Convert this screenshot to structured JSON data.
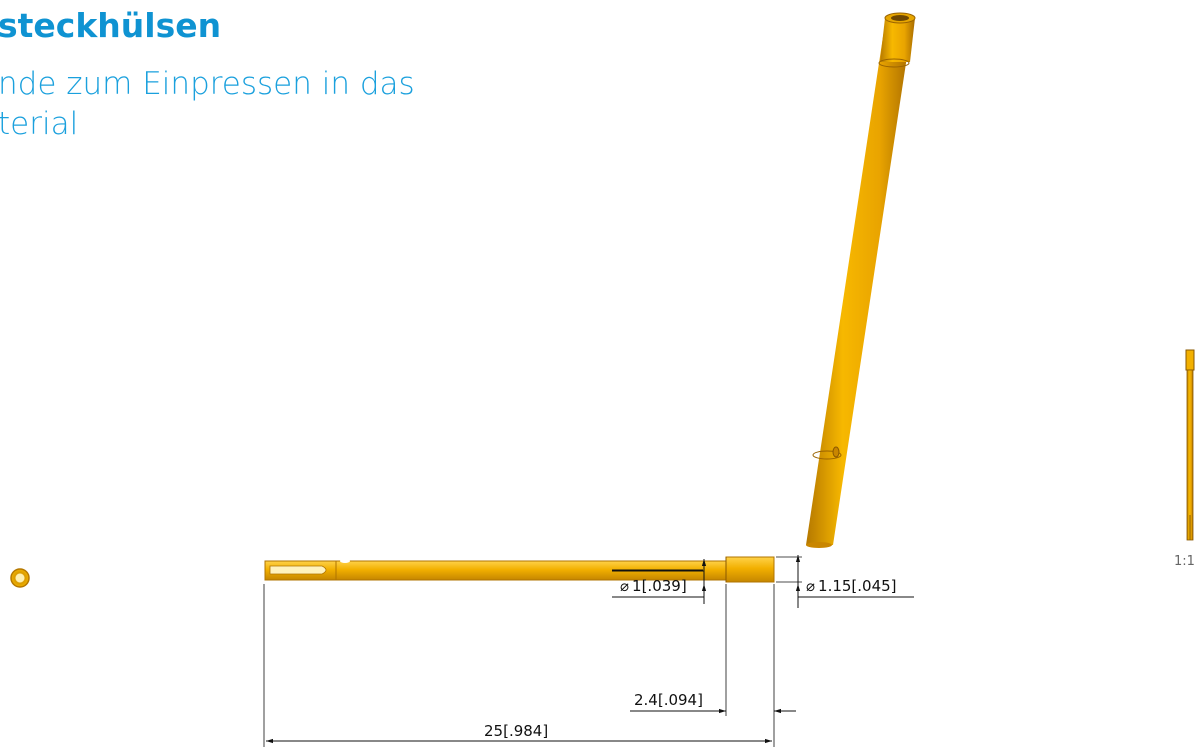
{
  "title": "steckhülsen",
  "subtitle": [
    "nde zum Einpressen in das",
    "terial"
  ],
  "dimensions": {
    "diameter_small": "1[.039]",
    "diameter_large": "1.15[.045]",
    "length_head": "2.4[.094]",
    "length_total": "25[.984]",
    "diameter_symbol": "⌀"
  },
  "scale_label": "1:1",
  "colors": {
    "accent": "#0f93d2",
    "part": "#f0a800",
    "part_dark": "#c98600"
  }
}
